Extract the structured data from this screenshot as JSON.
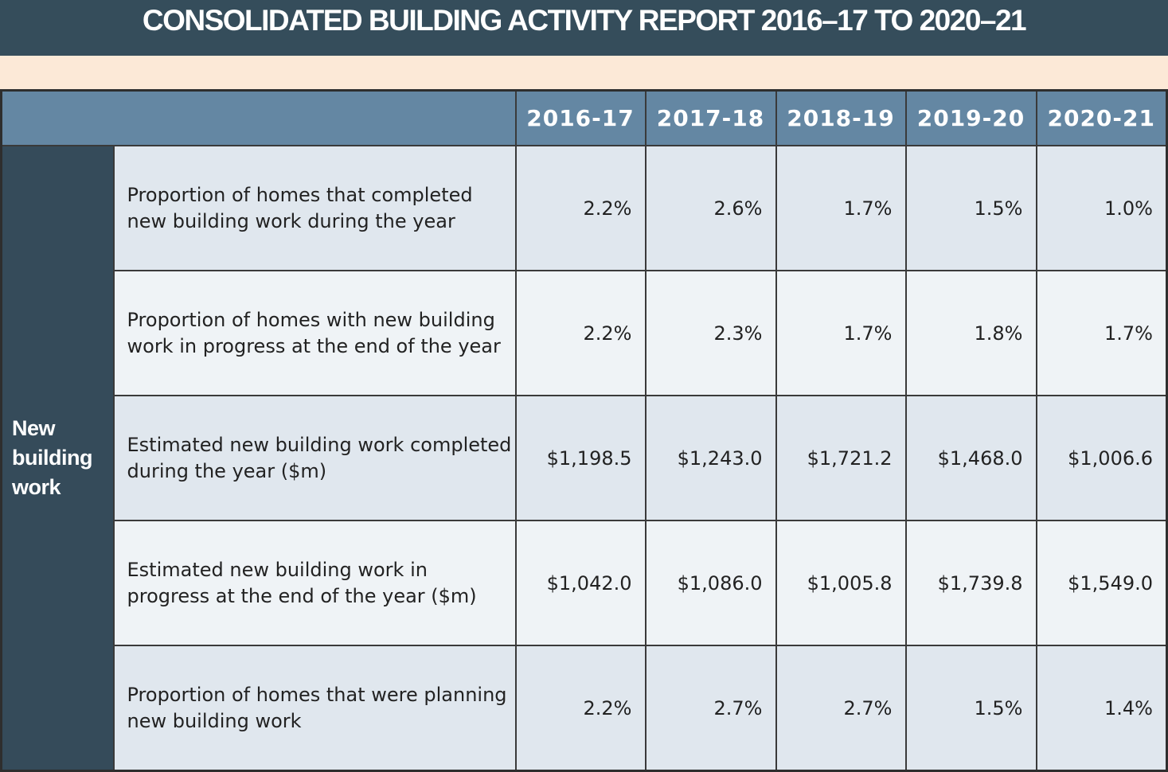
{
  "title": "CONSOLIDATED BUILDING ACTIVITY REPORT 2016–17 TO 2020–21",
  "columns": [
    "2016-17",
    "2017-18",
    "2018-19",
    "2019-20",
    "2020-21"
  ],
  "group_label": "New building work",
  "rows": [
    {
      "label": "Proportion of homes that completed new building work during the year",
      "values": [
        "2.2%",
        "2.6%",
        "1.7%",
        "1.5%",
        "1.0%"
      ]
    },
    {
      "label": "Proportion of homes with new building work in progress at the end of the year",
      "values": [
        "2.2%",
        "2.3%",
        "1.7%",
        "1.8%",
        "1.7%"
      ]
    },
    {
      "label": "Estimated new building work completed during the year ($m)",
      "values": [
        "$1,198.5",
        "$1,243.0",
        "$1,721.2",
        "$1,468.0",
        "$1,006.6"
      ]
    },
    {
      "label": "Estimated new building work in progress at the end of the year ($m)",
      "values": [
        "$1,042.0",
        "$1,086.0",
        "$1,005.8",
        "$1,739.8",
        "$1,549.0"
      ]
    },
    {
      "label": "Proportion of homes that were planning new building work",
      "values": [
        "2.2%",
        "2.7%",
        "2.7%",
        "1.5%",
        "1.4%"
      ]
    }
  ],
  "colors": {
    "title_bg": "#354d5b",
    "band": "#fce9d7",
    "header_bg": "#6487a3",
    "group_bg": "#354b5a",
    "row_odd": "#e0e7ee",
    "row_even": "#eff3f6"
  }
}
